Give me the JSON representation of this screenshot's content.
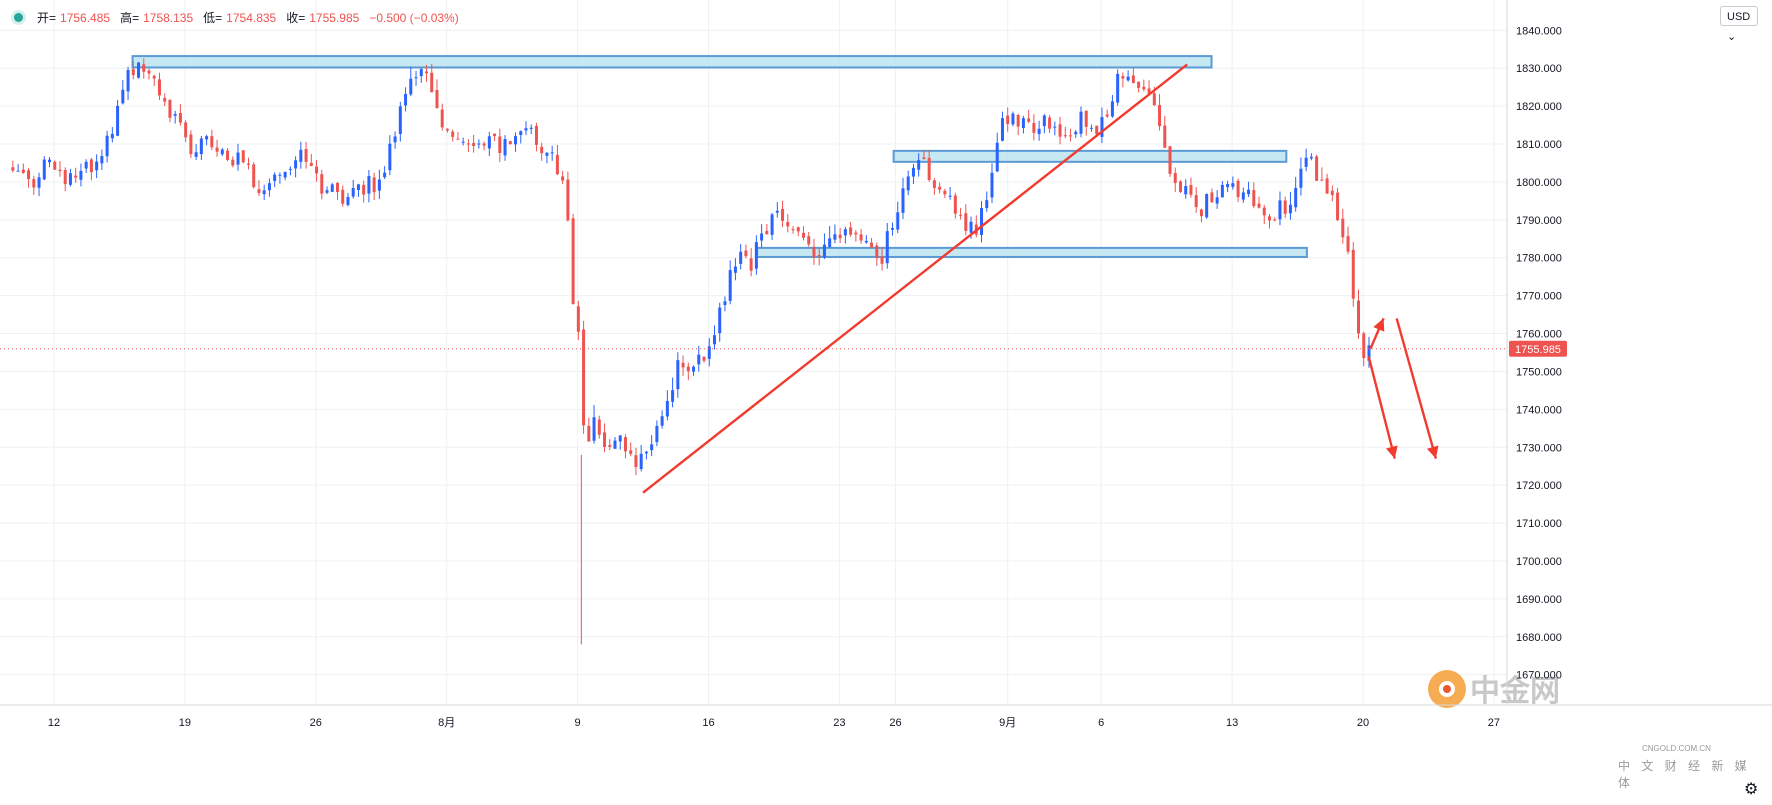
{
  "ohlc": {
    "open_label": "开=",
    "open": "1756.485",
    "high_label": "高=",
    "high": "1758.135",
    "low_label": "低=",
    "low": "1754.835",
    "close_label": "收=",
    "close": "1755.985",
    "change": "−0.500 (−0.03%)"
  },
  "currency": "USD",
  "current_price_label": "1755.985",
  "watermark": {
    "logo_text": "中金网",
    "url": "CNGOLD.COM.CN",
    "tagline": "中 文 财 经 新 媒 体"
  },
  "colors": {
    "up": "#2962ff",
    "down": "#ef5350",
    "zone_fill": "#b3e0ee",
    "zone_border": "#5b9bd5",
    "trendline": "#f23b2f",
    "grid": "#eef0f3"
  },
  "chart_data": {
    "type": "candlestick",
    "instrument_currency": "USD",
    "ylim": [
      1662,
      1848
    ],
    "y_ticks": [
      1670,
      1680,
      1690,
      1700,
      1710,
      1720,
      1730,
      1740,
      1750,
      1760,
      1770,
      1780,
      1790,
      1800,
      1810,
      1820,
      1830,
      1840
    ],
    "y_tick_labels": [
      "1670.000",
      "1680.000",
      "1690.000",
      "1700.000",
      "1710.000",
      "1720.000",
      "1730.000",
      "1740.000",
      "1750.000",
      "1760.000",
      "1770.000",
      "1780.000",
      "1790.000",
      "1800.000",
      "1810.000",
      "1820.000",
      "1830.000",
      "1840.000"
    ],
    "x_ticks": [
      {
        "label": "12",
        "day": 0
      },
      {
        "label": "19",
        "day": 7
      },
      {
        "label": "26",
        "day": 14
      },
      {
        "label": "8月",
        "day": 21
      },
      {
        "label": "9",
        "day": 28
      },
      {
        "label": "16",
        "day": 35
      },
      {
        "label": "23",
        "day": 42
      },
      {
        "label": "26",
        "day": 45
      },
      {
        "label": "9月",
        "day": 51
      },
      {
        "label": "6",
        "day": 56
      },
      {
        "label": "13",
        "day": 63
      },
      {
        "label": "20",
        "day": 70
      },
      {
        "label": "27",
        "day": 77
      }
    ],
    "current_price": 1755.985,
    "path": [
      {
        "day": -2.2,
        "price": 1804
      },
      {
        "day": -1.2,
        "price": 1800
      },
      {
        "day": -0.3,
        "price": 1808
      },
      {
        "day": 0.8,
        "price": 1800
      },
      {
        "day": 2.0,
        "price": 1805
      },
      {
        "day": 3.2,
        "price": 1812
      },
      {
        "day": 3.8,
        "price": 1828
      },
      {
        "day": 4.6,
        "price": 1832
      },
      {
        "day": 5.4,
        "price": 1826
      },
      {
        "day": 6.3,
        "price": 1818
      },
      {
        "day": 7.4,
        "price": 1808
      },
      {
        "day": 8.3,
        "price": 1812
      },
      {
        "day": 9.4,
        "price": 1808
      },
      {
        "day": 10.4,
        "price": 1802
      },
      {
        "day": 11.3,
        "price": 1797
      },
      {
        "day": 12.3,
        "price": 1803
      },
      {
        "day": 13.2,
        "price": 1806
      },
      {
        "day": 14.2,
        "price": 1800
      },
      {
        "day": 15.2,
        "price": 1796
      },
      {
        "day": 16.2,
        "price": 1800
      },
      {
        "day": 17.3,
        "price": 1798
      },
      {
        "day": 18.3,
        "price": 1815
      },
      {
        "day": 19.2,
        "price": 1830
      },
      {
        "day": 20.1,
        "price": 1826
      },
      {
        "day": 20.9,
        "price": 1812
      },
      {
        "day": 21.9,
        "price": 1810
      },
      {
        "day": 22.9,
        "price": 1812
      },
      {
        "day": 23.9,
        "price": 1810
      },
      {
        "day": 24.8,
        "price": 1811
      },
      {
        "day": 25.7,
        "price": 1812
      },
      {
        "day": 26.6,
        "price": 1808
      },
      {
        "day": 27.3,
        "price": 1800
      },
      {
        "day": 27.7,
        "price": 1772
      },
      {
        "day": 28.1,
        "price": 1758
      },
      {
        "day": 28.4,
        "price": 1728
      },
      {
        "day": 28.9,
        "price": 1738
      },
      {
        "day": 29.5,
        "price": 1730
      },
      {
        "day": 30.3,
        "price": 1733
      },
      {
        "day": 31.0,
        "price": 1727
      },
      {
        "day": 31.8,
        "price": 1730
      },
      {
        "day": 32.6,
        "price": 1742
      },
      {
        "day": 33.5,
        "price": 1752
      },
      {
        "day": 34.3,
        "price": 1752
      },
      {
        "day": 35.1,
        "price": 1756
      },
      {
        "day": 35.7,
        "price": 1768
      },
      {
        "day": 36.4,
        "price": 1780
      },
      {
        "day": 37.2,
        "price": 1778
      },
      {
        "day": 37.9,
        "price": 1786
      },
      {
        "day": 38.6,
        "price": 1790
      },
      {
        "day": 39.4,
        "price": 1787
      },
      {
        "day": 40.2,
        "price": 1786
      },
      {
        "day": 41.0,
        "price": 1780
      },
      {
        "day": 41.8,
        "price": 1788
      },
      {
        "day": 42.6,
        "price": 1786
      },
      {
        "day": 43.4,
        "price": 1782
      },
      {
        "day": 44.2,
        "price": 1780
      },
      {
        "day": 44.9,
        "price": 1790
      },
      {
        "day": 45.6,
        "price": 1804
      },
      {
        "day": 46.4,
        "price": 1806
      },
      {
        "day": 47.3,
        "price": 1798
      },
      {
        "day": 48.3,
        "price": 1793
      },
      {
        "day": 49.2,
        "price": 1786
      },
      {
        "day": 50.0,
        "price": 1798
      },
      {
        "day": 50.6,
        "price": 1814
      },
      {
        "day": 51.4,
        "price": 1818
      },
      {
        "day": 52.3,
        "price": 1812
      },
      {
        "day": 53.2,
        "price": 1816
      },
      {
        "day": 54.1,
        "price": 1814
      },
      {
        "day": 55.0,
        "price": 1816
      },
      {
        "day": 55.8,
        "price": 1812
      },
      {
        "day": 56.6,
        "price": 1822
      },
      {
        "day": 57.1,
        "price": 1830
      },
      {
        "day": 57.8,
        "price": 1828
      },
      {
        "day": 58.5,
        "price": 1826
      },
      {
        "day": 59.1,
        "price": 1816
      },
      {
        "day": 59.6,
        "price": 1805
      },
      {
        "day": 60.4,
        "price": 1798
      },
      {
        "day": 61.2,
        "price": 1792
      },
      {
        "day": 61.8,
        "price": 1795
      },
      {
        "day": 62.6,
        "price": 1797
      },
      {
        "day": 63.5,
        "price": 1799
      },
      {
        "day": 64.4,
        "price": 1792
      },
      {
        "day": 65.2,
        "price": 1790
      },
      {
        "day": 66.1,
        "price": 1796
      },
      {
        "day": 67.0,
        "price": 1806
      },
      {
        "day": 67.7,
        "price": 1802
      },
      {
        "day": 68.5,
        "price": 1794
      },
      {
        "day": 69.2,
        "price": 1782
      },
      {
        "day": 69.6,
        "price": 1762
      },
      {
        "day": 70.0,
        "price": 1754
      },
      {
        "day": 70.5,
        "price": 1755.985
      }
    ],
    "annotations": {
      "zones": [
        {
          "from_day": 4.2,
          "to_day": 61.9,
          "low": 1830.2,
          "high": 1833.2
        },
        {
          "from_day": 44.9,
          "to_day": 65.9,
          "low": 1805.3,
          "high": 1808.2
        },
        {
          "from_day": 37.6,
          "to_day": 67.0,
          "low": 1780.2,
          "high": 1782.6
        }
      ],
      "trendline": {
        "start": {
          "day": 31.5,
          "price": 1718
        },
        "end": {
          "day": 60.6,
          "price": 1831
        }
      },
      "arrows": [
        {
          "from": {
            "day": 70.4,
            "price": 1756
          },
          "to": {
            "day": 71.1,
            "price": 1764
          }
        },
        {
          "from": {
            "day": 70.3,
            "price": 1754
          },
          "to": {
            "day": 71.7,
            "price": 1727
          }
        },
        {
          "from": {
            "day": 71.8,
            "price": 1764
          },
          "to": {
            "day": 73.9,
            "price": 1727
          }
        }
      ]
    }
  }
}
